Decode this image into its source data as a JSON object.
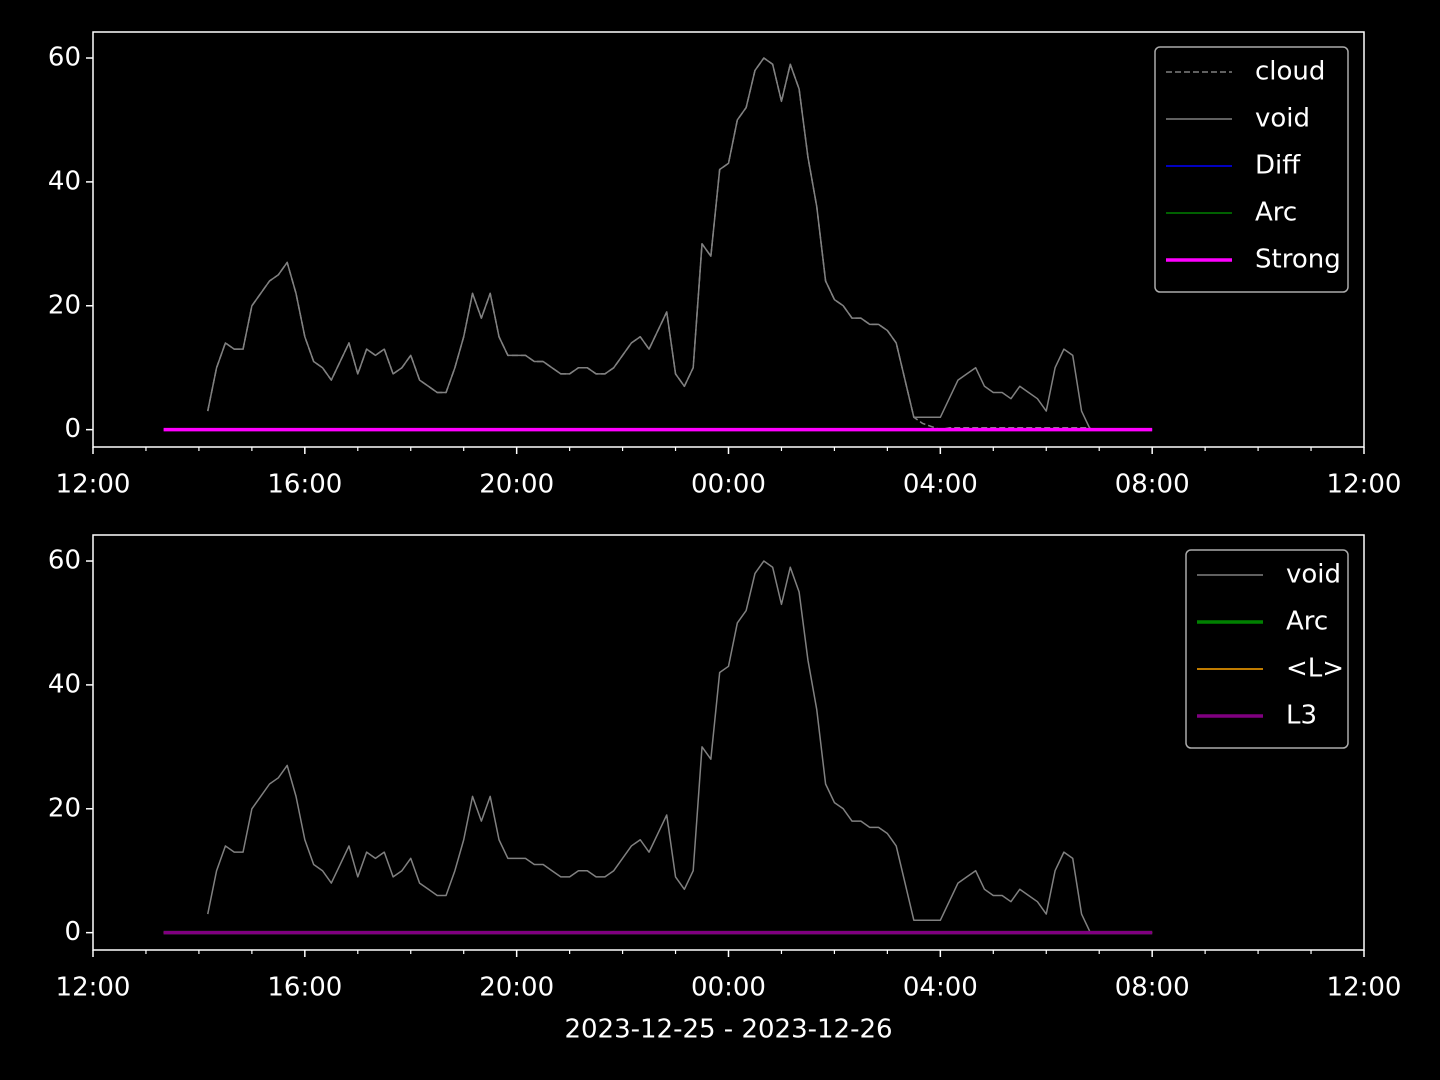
{
  "chart_data": [
    {
      "type": "line",
      "xlim": [
        "2023-12-25T12:00",
        "2023-12-26T12:00"
      ],
      "xticks": [
        {
          "value": "2023-12-25T12:00",
          "label": "12:00"
        },
        {
          "value": "2023-12-25T16:00",
          "label": "16:00"
        },
        {
          "value": "2023-12-25T20:00",
          "label": "20:00"
        },
        {
          "value": "2023-12-26T00:00",
          "label": "00:00"
        },
        {
          "value": "2023-12-26T04:00",
          "label": "04:00"
        },
        {
          "value": "2023-12-26T08:00",
          "label": "08:00"
        },
        {
          "value": "2023-12-26T12:00",
          "label": "12:00"
        }
      ],
      "xminorticks": [
        "2023-12-25T13:00",
        "2023-12-25T14:00",
        "2023-12-25T15:00",
        "2023-12-25T17:00",
        "2023-12-25T18:00",
        "2023-12-25T19:00",
        "2023-12-25T21:00",
        "2023-12-25T22:00",
        "2023-12-25T23:00",
        "2023-12-26T01:00",
        "2023-12-26T02:00",
        "2023-12-26T03:00",
        "2023-12-26T05:00",
        "2023-12-26T06:00",
        "2023-12-26T07:00",
        "2023-12-26T09:00",
        "2023-12-26T10:00",
        "2023-12-26T11:00"
      ],
      "ylim": [
        -2.8,
        64.2
      ],
      "yticks": [
        0,
        20,
        40,
        60
      ],
      "legend": "upper right",
      "series": [
        {
          "name": "cloud",
          "color": "#808080",
          "linestyle": "dashed",
          "linewidth": 1.5,
          "x": [
            "2023-12-25T14:10",
            "2023-12-25T14:20",
            "2023-12-25T14:30",
            "2023-12-25T14:40",
            "2023-12-25T14:50",
            "2023-12-25T15:00",
            "2023-12-25T15:10",
            "2023-12-25T15:20",
            "2023-12-25T15:30",
            "2023-12-25T15:40",
            "2023-12-25T15:50",
            "2023-12-25T16:00",
            "2023-12-25T16:10",
            "2023-12-25T16:20",
            "2023-12-25T16:30",
            "2023-12-25T16:40",
            "2023-12-25T16:50",
            "2023-12-25T17:00",
            "2023-12-25T17:10",
            "2023-12-25T17:20",
            "2023-12-25T17:30",
            "2023-12-25T17:40",
            "2023-12-25T17:50",
            "2023-12-25T18:00",
            "2023-12-25T18:10",
            "2023-12-25T18:20",
            "2023-12-25T18:30",
            "2023-12-25T18:40",
            "2023-12-25T18:50",
            "2023-12-25T19:00",
            "2023-12-25T19:10",
            "2023-12-25T19:20",
            "2023-12-25T19:30",
            "2023-12-25T19:40",
            "2023-12-25T19:50",
            "2023-12-25T20:00",
            "2023-12-25T20:10",
            "2023-12-25T20:20",
            "2023-12-25T20:30",
            "2023-12-25T20:40",
            "2023-12-25T20:50",
            "2023-12-25T21:00",
            "2023-12-25T21:10",
            "2023-12-25T21:20",
            "2023-12-25T21:30",
            "2023-12-25T21:40",
            "2023-12-25T21:50",
            "2023-12-25T22:00",
            "2023-12-25T22:10",
            "2023-12-25T22:20",
            "2023-12-25T22:30",
            "2023-12-25T22:40",
            "2023-12-25T22:50",
            "2023-12-25T23:00",
            "2023-12-25T23:10",
            "2023-12-25T23:20",
            "2023-12-25T23:30",
            "2023-12-25T23:40",
            "2023-12-25T23:50",
            "2023-12-26T00:00",
            "2023-12-26T00:10",
            "2023-12-26T00:20",
            "2023-12-26T00:30",
            "2023-12-26T00:40",
            "2023-12-26T00:50",
            "2023-12-26T01:00",
            "2023-12-26T01:10",
            "2023-12-26T01:20",
            "2023-12-26T01:30",
            "2023-12-26T01:40",
            "2023-12-26T01:50",
            "2023-12-26T02:00",
            "2023-12-26T02:10",
            "2023-12-26T02:20",
            "2023-12-26T02:30",
            "2023-12-26T02:40",
            "2023-12-26T02:50",
            "2023-12-26T03:00",
            "2023-12-26T03:10",
            "2023-12-26T03:20",
            "2023-12-26T03:30",
            "2023-12-26T03:40",
            "2023-12-26T03:50",
            "2023-12-26T04:00",
            "2023-12-26T04:10",
            "2023-12-26T04:20",
            "2023-12-26T04:30",
            "2023-12-26T04:40",
            "2023-12-26T04:50",
            "2023-12-26T05:00",
            "2023-12-26T05:10",
            "2023-12-26T05:20",
            "2023-12-26T05:30",
            "2023-12-26T05:40",
            "2023-12-26T05:50",
            "2023-12-26T06:00",
            "2023-12-26T06:10",
            "2023-12-26T06:20",
            "2023-12-26T06:30",
            "2023-12-26T06:40",
            "2023-12-26T06:50"
          ],
          "values": [
            3,
            10,
            14,
            13,
            13,
            20,
            22,
            24,
            25,
            27,
            22,
            15,
            11,
            10,
            8,
            11,
            14,
            9,
            13,
            12,
            13,
            9,
            10,
            12,
            8,
            7,
            6,
            6,
            10,
            15,
            22,
            18,
            22,
            15,
            12,
            12,
            12,
            11,
            11,
            10,
            9,
            9,
            10,
            10,
            9,
            9,
            10,
            12,
            14,
            15,
            13,
            16,
            19,
            9,
            7,
            10,
            30,
            28,
            42,
            43,
            50,
            52,
            58,
            60,
            59,
            53,
            59,
            55,
            44,
            36,
            24,
            21,
            20,
            18,
            18,
            17,
            17,
            16,
            14,
            8,
            2,
            1,
            0.5,
            0,
            0.3,
            0.3,
            0.3,
            0.3,
            0.3,
            0.3,
            0.3,
            0.3,
            0.3,
            0.3,
            0.3,
            0.3,
            0.3,
            0.3,
            0.3,
            0.3,
            0.3
          ]
        },
        {
          "name": "void",
          "color": "#808080",
          "linestyle": "solid",
          "linewidth": 1.5,
          "x": [
            "2023-12-25T14:10",
            "2023-12-25T14:20",
            "2023-12-25T14:30",
            "2023-12-25T14:40",
            "2023-12-25T14:50",
            "2023-12-25T15:00",
            "2023-12-25T15:10",
            "2023-12-25T15:20",
            "2023-12-25T15:30",
            "2023-12-25T15:40",
            "2023-12-25T15:50",
            "2023-12-25T16:00",
            "2023-12-25T16:10",
            "2023-12-25T16:20",
            "2023-12-25T16:30",
            "2023-12-25T16:40",
            "2023-12-25T16:50",
            "2023-12-25T17:00",
            "2023-12-25T17:10",
            "2023-12-25T17:20",
            "2023-12-25T17:30",
            "2023-12-25T17:40",
            "2023-12-25T17:50",
            "2023-12-25T18:00",
            "2023-12-25T18:10",
            "2023-12-25T18:20",
            "2023-12-25T18:30",
            "2023-12-25T18:40",
            "2023-12-25T18:50",
            "2023-12-25T19:00",
            "2023-12-25T19:10",
            "2023-12-25T19:20",
            "2023-12-25T19:30",
            "2023-12-25T19:40",
            "2023-12-25T19:50",
            "2023-12-25T20:00",
            "2023-12-25T20:10",
            "2023-12-25T20:20",
            "2023-12-25T20:30",
            "2023-12-25T20:40",
            "2023-12-25T20:50",
            "2023-12-25T21:00",
            "2023-12-25T21:10",
            "2023-12-25T21:20",
            "2023-12-25T21:30",
            "2023-12-25T21:40",
            "2023-12-25T21:50",
            "2023-12-25T22:00",
            "2023-12-25T22:10",
            "2023-12-25T22:20",
            "2023-12-25T22:30",
            "2023-12-25T22:40",
            "2023-12-25T22:50",
            "2023-12-25T23:00",
            "2023-12-25T23:10",
            "2023-12-25T23:20",
            "2023-12-25T23:30",
            "2023-12-25T23:40",
            "2023-12-25T23:50",
            "2023-12-26T00:00",
            "2023-12-26T00:10",
            "2023-12-26T00:20",
            "2023-12-26T00:30",
            "2023-12-26T00:40",
            "2023-12-26T00:50",
            "2023-12-26T01:00",
            "2023-12-26T01:10",
            "2023-12-26T01:20",
            "2023-12-26T01:30",
            "2023-12-26T01:40",
            "2023-12-26T01:50",
            "2023-12-26T02:00",
            "2023-12-26T02:10",
            "2023-12-26T02:20",
            "2023-12-26T02:30",
            "2023-12-26T02:40",
            "2023-12-26T02:50",
            "2023-12-26T03:00",
            "2023-12-26T03:10",
            "2023-12-26T03:20",
            "2023-12-26T03:30",
            "2023-12-26T03:40",
            "2023-12-26T03:50",
            "2023-12-26T04:00",
            "2023-12-26T04:10",
            "2023-12-26T04:20",
            "2023-12-26T04:30",
            "2023-12-26T04:40",
            "2023-12-26T04:50",
            "2023-12-26T05:00",
            "2023-12-26T05:10",
            "2023-12-26T05:20",
            "2023-12-26T05:30",
            "2023-12-26T05:40",
            "2023-12-26T05:50",
            "2023-12-26T06:00",
            "2023-12-26T06:10",
            "2023-12-26T06:20",
            "2023-12-26T06:30",
            "2023-12-26T06:40",
            "2023-12-26T06:50"
          ],
          "values": [
            3,
            10,
            14,
            13,
            13,
            20,
            22,
            24,
            25,
            27,
            22,
            15,
            11,
            10,
            8,
            11,
            14,
            9,
            13,
            12,
            13,
            9,
            10,
            12,
            8,
            7,
            6,
            6,
            10,
            15,
            22,
            18,
            22,
            15,
            12,
            12,
            12,
            11,
            11,
            10,
            9,
            9,
            10,
            10,
            9,
            9,
            10,
            12,
            14,
            15,
            13,
            16,
            19,
            9,
            7,
            10,
            30,
            28,
            42,
            43,
            50,
            52,
            58,
            60,
            59,
            53,
            59,
            55,
            44,
            36,
            24,
            21,
            20,
            18,
            18,
            17,
            17,
            16,
            14,
            8,
            2,
            2,
            2,
            2,
            5,
            8,
            9,
            10,
            7,
            6,
            6,
            5,
            7,
            6,
            5,
            3,
            10,
            13,
            12,
            3,
            0
          ]
        },
        {
          "name": "Diff",
          "color": "#0000ff",
          "linestyle": "solid",
          "linewidth": 1.5,
          "x": [
            "2023-12-25T13:20",
            "2023-12-26T08:00"
          ],
          "values": [
            0,
            0
          ]
        },
        {
          "name": "Arc",
          "color": "#008000",
          "linestyle": "solid",
          "linewidth": 1.5,
          "x": [
            "2023-12-25T13:20",
            "2023-12-26T08:00"
          ],
          "values": [
            0,
            0
          ]
        },
        {
          "name": "Strong",
          "color": "#ff00ff",
          "linestyle": "solid",
          "linewidth": 3.5,
          "x": [
            "2023-12-25T13:20",
            "2023-12-26T08:00"
          ],
          "values": [
            0,
            0
          ]
        }
      ]
    },
    {
      "type": "line",
      "xlabel": "2023-12-25 - 2023-12-26",
      "xlim": [
        "2023-12-25T12:00",
        "2023-12-26T12:00"
      ],
      "xticks": [
        {
          "value": "2023-12-25T12:00",
          "label": "12:00"
        },
        {
          "value": "2023-12-25T16:00",
          "label": "16:00"
        },
        {
          "value": "2023-12-25T20:00",
          "label": "20:00"
        },
        {
          "value": "2023-12-26T00:00",
          "label": "00:00"
        },
        {
          "value": "2023-12-26T04:00",
          "label": "04:00"
        },
        {
          "value": "2023-12-26T08:00",
          "label": "08:00"
        },
        {
          "value": "2023-12-26T12:00",
          "label": "12:00"
        }
      ],
      "xminorticks": [
        "2023-12-25T13:00",
        "2023-12-25T14:00",
        "2023-12-25T15:00",
        "2023-12-25T17:00",
        "2023-12-25T18:00",
        "2023-12-25T19:00",
        "2023-12-25T21:00",
        "2023-12-25T22:00",
        "2023-12-25T23:00",
        "2023-12-26T01:00",
        "2023-12-26T02:00",
        "2023-12-26T03:00",
        "2023-12-26T05:00",
        "2023-12-26T06:00",
        "2023-12-26T07:00",
        "2023-12-26T09:00",
        "2023-12-26T10:00",
        "2023-12-26T11:00"
      ],
      "ylim": [
        -2.8,
        64.2
      ],
      "yticks": [
        0,
        20,
        40,
        60
      ],
      "legend": "upper right",
      "series": [
        {
          "name": "void",
          "color": "#808080",
          "linestyle": "solid",
          "linewidth": 1.5,
          "x": [
            "2023-12-25T14:10",
            "2023-12-25T14:20",
            "2023-12-25T14:30",
            "2023-12-25T14:40",
            "2023-12-25T14:50",
            "2023-12-25T15:00",
            "2023-12-25T15:10",
            "2023-12-25T15:20",
            "2023-12-25T15:30",
            "2023-12-25T15:40",
            "2023-12-25T15:50",
            "2023-12-25T16:00",
            "2023-12-25T16:10",
            "2023-12-25T16:20",
            "2023-12-25T16:30",
            "2023-12-25T16:40",
            "2023-12-25T16:50",
            "2023-12-25T17:00",
            "2023-12-25T17:10",
            "2023-12-25T17:20",
            "2023-12-25T17:30",
            "2023-12-25T17:40",
            "2023-12-25T17:50",
            "2023-12-25T18:00",
            "2023-12-25T18:10",
            "2023-12-25T18:20",
            "2023-12-25T18:30",
            "2023-12-25T18:40",
            "2023-12-25T18:50",
            "2023-12-25T19:00",
            "2023-12-25T19:10",
            "2023-12-25T19:20",
            "2023-12-25T19:30",
            "2023-12-25T19:40",
            "2023-12-25T19:50",
            "2023-12-25T20:00",
            "2023-12-25T20:10",
            "2023-12-25T20:20",
            "2023-12-25T20:30",
            "2023-12-25T20:40",
            "2023-12-25T20:50",
            "2023-12-25T21:00",
            "2023-12-25T21:10",
            "2023-12-25T21:20",
            "2023-12-25T21:30",
            "2023-12-25T21:40",
            "2023-12-25T21:50",
            "2023-12-25T22:00",
            "2023-12-25T22:10",
            "2023-12-25T22:20",
            "2023-12-25T22:30",
            "2023-12-25T22:40",
            "2023-12-25T22:50",
            "2023-12-25T23:00",
            "2023-12-25T23:10",
            "2023-12-25T23:20",
            "2023-12-25T23:30",
            "2023-12-25T23:40",
            "2023-12-25T23:50",
            "2023-12-26T00:00",
            "2023-12-26T00:10",
            "2023-12-26T00:20",
            "2023-12-26T00:30",
            "2023-12-26T00:40",
            "2023-12-26T00:50",
            "2023-12-26T01:00",
            "2023-12-26T01:10",
            "2023-12-26T01:20",
            "2023-12-26T01:30",
            "2023-12-26T01:40",
            "2023-12-26T01:50",
            "2023-12-26T02:00",
            "2023-12-26T02:10",
            "2023-12-26T02:20",
            "2023-12-26T02:30",
            "2023-12-26T02:40",
            "2023-12-26T02:50",
            "2023-12-26T03:00",
            "2023-12-26T03:10",
            "2023-12-26T03:20",
            "2023-12-26T03:30",
            "2023-12-26T03:40",
            "2023-12-26T03:50",
            "2023-12-26T04:00",
            "2023-12-26T04:10",
            "2023-12-26T04:20",
            "2023-12-26T04:30",
            "2023-12-26T04:40",
            "2023-12-26T04:50",
            "2023-12-26T05:00",
            "2023-12-26T05:10",
            "2023-12-26T05:20",
            "2023-12-26T05:30",
            "2023-12-26T05:40",
            "2023-12-26T05:50",
            "2023-12-26T06:00",
            "2023-12-26T06:10",
            "2023-12-26T06:20",
            "2023-12-26T06:30",
            "2023-12-26T06:40",
            "2023-12-26T06:50"
          ],
          "values": [
            3,
            10,
            14,
            13,
            13,
            20,
            22,
            24,
            25,
            27,
            22,
            15,
            11,
            10,
            8,
            11,
            14,
            9,
            13,
            12,
            13,
            9,
            10,
            12,
            8,
            7,
            6,
            6,
            10,
            15,
            22,
            18,
            22,
            15,
            12,
            12,
            12,
            11,
            11,
            10,
            9,
            9,
            10,
            10,
            9,
            9,
            10,
            12,
            14,
            15,
            13,
            16,
            19,
            9,
            7,
            10,
            30,
            28,
            42,
            43,
            50,
            52,
            58,
            60,
            59,
            53,
            59,
            55,
            44,
            36,
            24,
            21,
            20,
            18,
            18,
            17,
            17,
            16,
            14,
            8,
            2,
            2,
            2,
            2,
            5,
            8,
            9,
            10,
            7,
            6,
            6,
            5,
            7,
            6,
            5,
            3,
            10,
            13,
            12,
            3,
            0
          ]
        },
        {
          "name": "Arc",
          "color": "#008000",
          "linestyle": "solid",
          "linewidth": 3.5,
          "x": [
            "2023-12-25T13:20",
            "2023-12-26T08:00"
          ],
          "values": [
            0,
            0
          ]
        },
        {
          "name": "<L>",
          "color": "#ffa500",
          "linestyle": "solid",
          "linewidth": 1.5,
          "x": [
            "2023-12-25T13:20",
            "2023-12-26T08:00"
          ],
          "values": [
            0,
            0
          ]
        },
        {
          "name": "L3",
          "color": "#800080",
          "linestyle": "solid",
          "linewidth": 3.5,
          "x": [
            "2023-12-25T13:20",
            "2023-12-26T08:00"
          ],
          "values": [
            0,
            0
          ]
        }
      ]
    }
  ]
}
